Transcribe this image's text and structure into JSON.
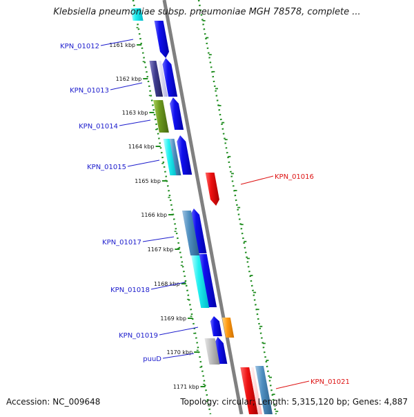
{
  "title": "Klebsiella pneumoniae subsp. pneumoniae MGH 78578, complete ...",
  "footer": {
    "accession": "Accession: NC_009648",
    "summary": "Topology: circular; Length: 5,315,120 bp; Genes: 4,887"
  },
  "ticks": [
    "1161 kbp",
    "1162 kbp",
    "1163 kbp",
    "1164 kbp",
    "1165 kbp",
    "1166 kbp",
    "1167 kbp",
    "1168 kbp",
    "1169 kbp",
    "1170 kbp",
    "1171 kbp"
  ],
  "gene_labels": [
    "KPN_01012",
    "KPN_01013",
    "KPN_01014",
    "KPN_01015",
    "KPN_01016",
    "KPN_01017",
    "KPN_01018",
    "KPN_01019",
    "puuD",
    "KPN_01021"
  ],
  "colors": {
    "backbone": "#808080",
    "dots": "#1e8c1e",
    "label_forward": "#1a1acc",
    "label_reverse": "#dd1111",
    "cds": "#1010ee",
    "feature_red": "#ee1111"
  }
}
